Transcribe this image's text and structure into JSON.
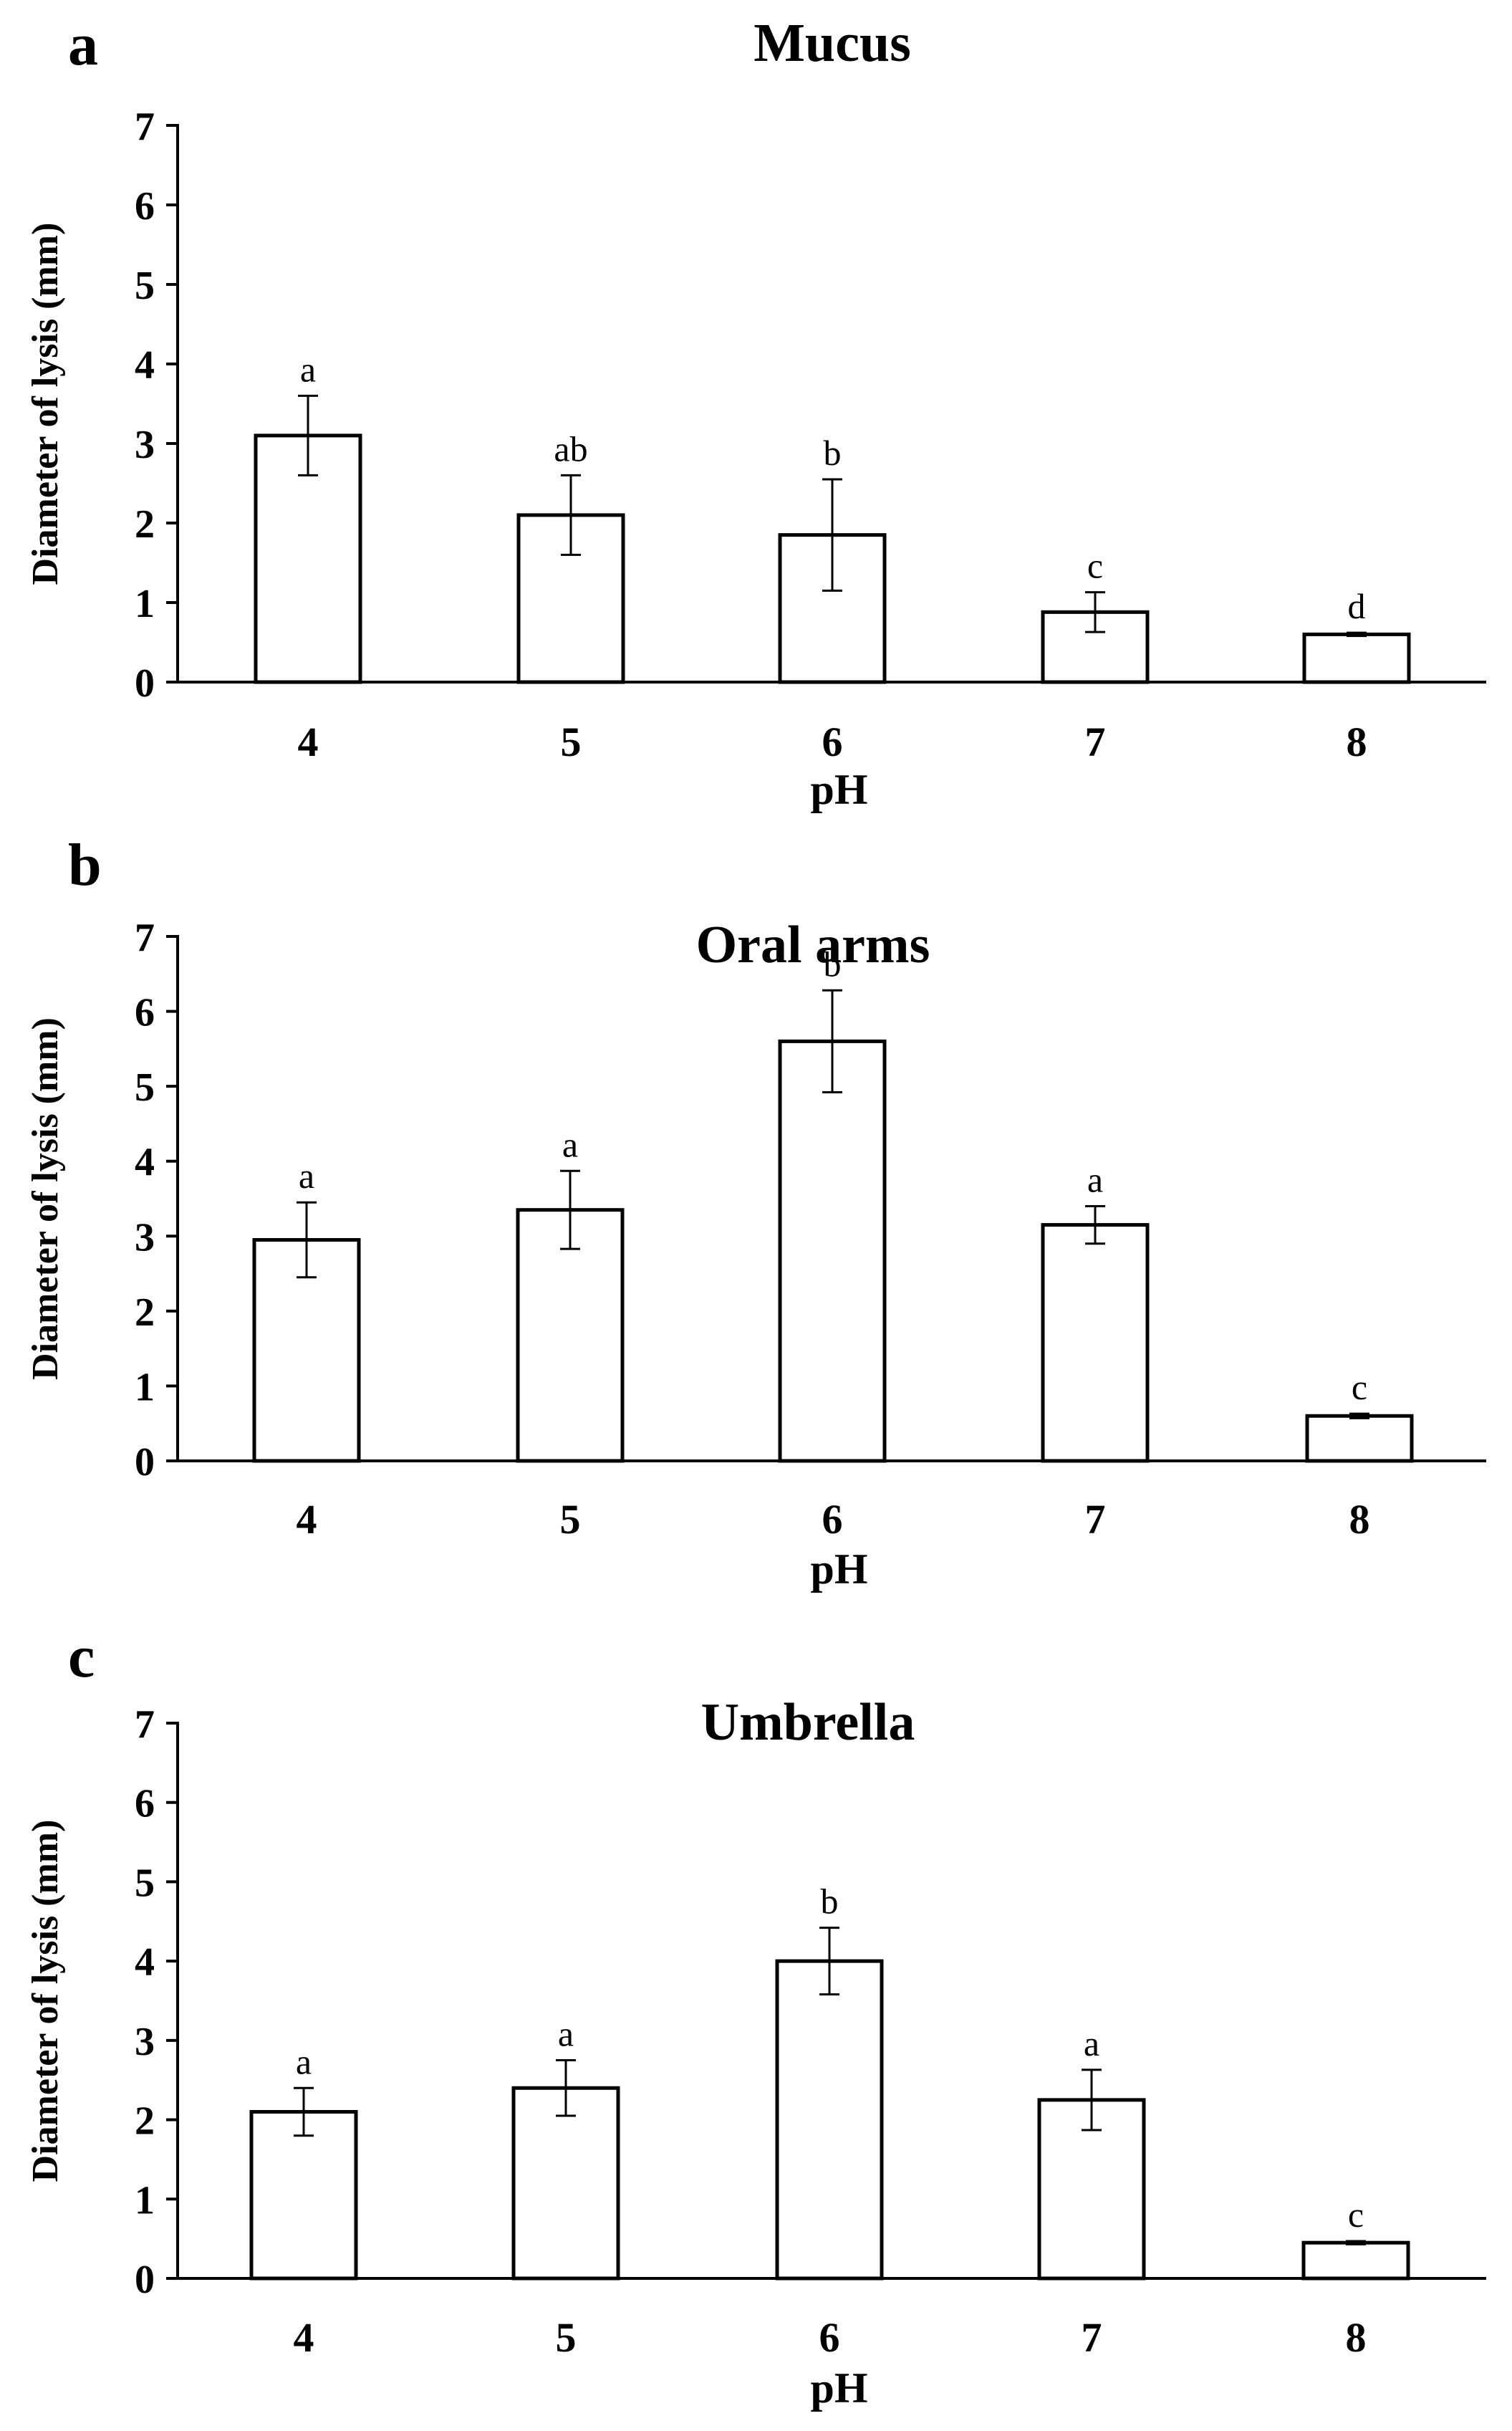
{
  "chart_data": [
    {
      "type": "bar",
      "panel_label": "a",
      "title": "Mucus",
      "xlabel": "pH",
      "ylabel": "Diameter of lysis (mm)",
      "categories": [
        "4",
        "5",
        "6",
        "7",
        "8"
      ],
      "values": [
        3.1,
        2.1,
        1.85,
        0.88,
        0.6
      ],
      "errors": [
        0.5,
        0.5,
        0.7,
        0.25,
        0.02
      ],
      "significance_letters": [
        "a",
        "ab",
        "b",
        "c",
        "d"
      ],
      "ylim": [
        0,
        7
      ],
      "yticks": [
        "0",
        "1",
        "2",
        "3",
        "4",
        "5",
        "6",
        "7"
      ],
      "grid": false
    },
    {
      "type": "bar",
      "panel_label": "b",
      "title": "Oral arms",
      "xlabel": "pH",
      "ylabel": "Diameter of lysis (mm)",
      "categories": [
        "4",
        "5",
        "6",
        "7",
        "8"
      ],
      "values": [
        2.95,
        3.35,
        5.6,
        3.15,
        0.6
      ],
      "errors": [
        0.5,
        0.52,
        0.68,
        0.25,
        0.03
      ],
      "significance_letters": [
        "a",
        "a",
        "b",
        "a",
        "c"
      ],
      "ylim": [
        0,
        7
      ],
      "yticks": [
        "0",
        "1",
        "2",
        "3",
        "4",
        "5",
        "6",
        "7"
      ],
      "grid": false
    },
    {
      "type": "bar",
      "panel_label": "c",
      "title": "Umbrella",
      "xlabel": "pH",
      "ylabel": "Diameter of lysis (mm)",
      "categories": [
        "4",
        "5",
        "6",
        "7",
        "8"
      ],
      "values": [
        2.1,
        2.4,
        4.0,
        2.25,
        0.45
      ],
      "errors": [
        0.3,
        0.35,
        0.42,
        0.38,
        0.02
      ],
      "significance_letters": [
        "a",
        "a",
        "b",
        "a",
        "c"
      ],
      "ylim": [
        0,
        7
      ],
      "yticks": [
        "0",
        "1",
        "2",
        "3",
        "4",
        "5",
        "6",
        "7"
      ],
      "grid": false
    }
  ]
}
